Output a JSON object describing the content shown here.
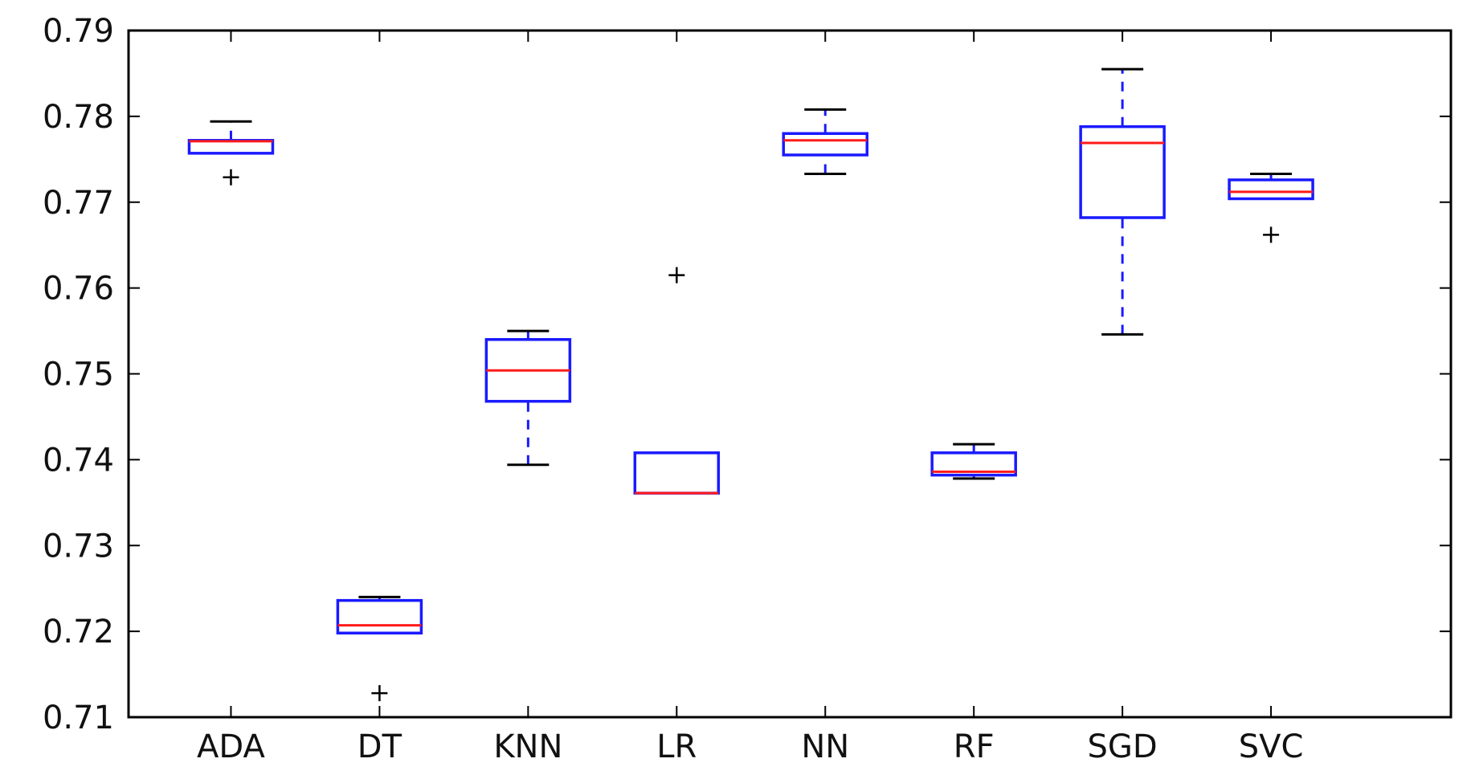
{
  "chart_data": {
    "type": "box",
    "title": "",
    "xlabel": "",
    "ylabel": "",
    "ylim": [
      0.71,
      0.79
    ],
    "yticks": [
      "0.71",
      "0.72",
      "0.73",
      "0.74",
      "0.75",
      "0.76",
      "0.77",
      "0.78",
      "0.79"
    ],
    "categories": [
      "ADA",
      "DT",
      "KNN",
      "LR",
      "NN",
      "RF",
      "SGD",
      "SVC"
    ],
    "boxes": [
      {
        "label": "ADA",
        "whisker_low": 0.7757,
        "q1": 0.7757,
        "median": 0.7771,
        "q3": 0.7772,
        "whisker_high": 0.7794,
        "outliers": [
          0.7729
        ]
      },
      {
        "label": "DT",
        "whisker_low": 0.7198,
        "q1": 0.7198,
        "median": 0.7207,
        "q3": 0.7236,
        "whisker_high": 0.724,
        "outliers": [
          0.7128
        ]
      },
      {
        "label": "KNN",
        "whisker_low": 0.7394,
        "q1": 0.7468,
        "median": 0.7504,
        "q3": 0.754,
        "whisker_high": 0.755,
        "outliers": []
      },
      {
        "label": "LR",
        "whisker_low": 0.7361,
        "q1": 0.7361,
        "median": 0.7361,
        "q3": 0.7408,
        "whisker_high": 0.7408,
        "outliers": [
          0.7615
        ]
      },
      {
        "label": "NN",
        "whisker_low": 0.7733,
        "q1": 0.7755,
        "median": 0.7772,
        "q3": 0.778,
        "whisker_high": 0.7808,
        "outliers": []
      },
      {
        "label": "RF",
        "whisker_low": 0.7378,
        "q1": 0.7382,
        "median": 0.7386,
        "q3": 0.7408,
        "whisker_high": 0.7418,
        "outliers": []
      },
      {
        "label": "SGD",
        "whisker_low": 0.7546,
        "q1": 0.7682,
        "median": 0.7769,
        "q3": 0.7788,
        "whisker_high": 0.7855,
        "outliers": []
      },
      {
        "label": "SVC",
        "whisker_low": 0.7704,
        "q1": 0.7704,
        "median": 0.7712,
        "q3": 0.7726,
        "whisker_high": 0.7733,
        "outliers": [
          0.7662
        ]
      }
    ],
    "grid": false,
    "legend": "none",
    "colors": {
      "box": "#1a1aff",
      "median": "#ff1a1a",
      "whisker": "#1a1aff",
      "cap": "#000000",
      "outlier": "#000000",
      "axis": "#000000"
    }
  }
}
